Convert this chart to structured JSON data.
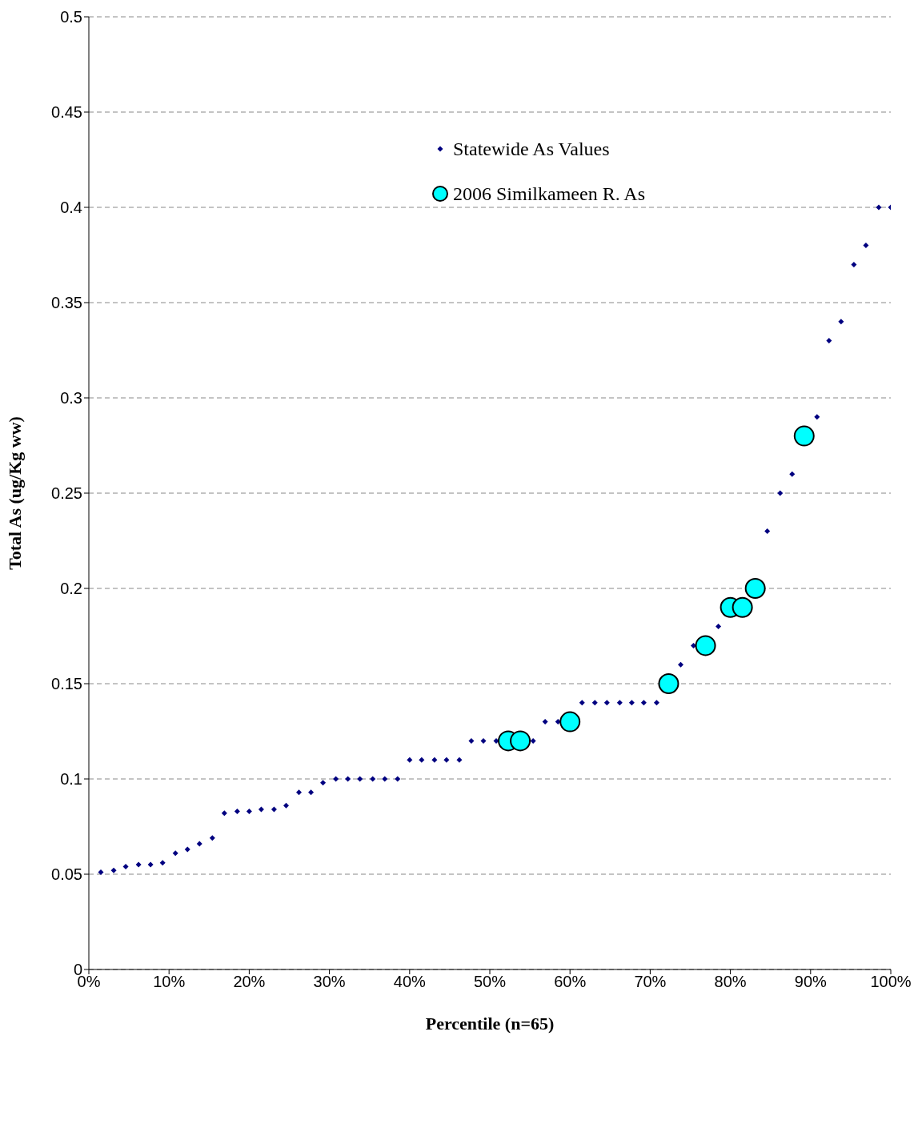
{
  "chart_data": {
    "type": "scatter",
    "xlabel": "Percentile  (n=65)",
    "ylabel": "Total As (ug/Kg ww)",
    "xlim": [
      0,
      100
    ],
    "xticks": [
      {
        "value": 0,
        "label": "0%"
      },
      {
        "value": 10,
        "label": "10%"
      },
      {
        "value": 20,
        "label": "20%"
      },
      {
        "value": 30,
        "label": "30%"
      },
      {
        "value": 40,
        "label": "40%"
      },
      {
        "value": 50,
        "label": "50%"
      },
      {
        "value": 60,
        "label": "60%"
      },
      {
        "value": 70,
        "label": "70%"
      },
      {
        "value": 80,
        "label": "80%"
      },
      {
        "value": 90,
        "label": "90%"
      },
      {
        "value": 100,
        "label": "100%"
      }
    ],
    "ylim": [
      0,
      0.5
    ],
    "yticks": [
      0,
      0.05,
      0.1,
      0.15,
      0.2,
      0.25,
      0.3,
      0.35,
      0.4,
      0.45,
      0.5
    ],
    "grid": "y",
    "legend": "top",
    "series": [
      {
        "name": "Statewide As Values",
        "color": "#000080",
        "marker": "diamond",
        "x": [
          1.5,
          3.1,
          4.6,
          6.2,
          7.7,
          9.2,
          10.8,
          12.3,
          13.8,
          15.4,
          16.9,
          18.5,
          20.0,
          21.5,
          23.1,
          24.6,
          26.2,
          27.7,
          29.2,
          30.8,
          32.3,
          33.8,
          35.4,
          36.9,
          38.5,
          40.0,
          41.5,
          43.1,
          44.6,
          46.2,
          47.7,
          49.2,
          50.8,
          52.3,
          53.8,
          55.4,
          56.9,
          58.5,
          60.0,
          61.5,
          63.1,
          64.6,
          66.2,
          67.7,
          69.2,
          70.8,
          72.3,
          73.8,
          75.4,
          76.9,
          78.5,
          80.0,
          81.5,
          83.1,
          84.6,
          86.2,
          87.7,
          89.2,
          90.8,
          92.3,
          93.8,
          95.4,
          96.9,
          98.5,
          100
        ],
        "values": [
          0.051,
          0.052,
          0.054,
          0.055,
          0.055,
          0.056,
          0.061,
          0.063,
          0.066,
          0.069,
          0.082,
          0.083,
          0.083,
          0.084,
          0.084,
          0.086,
          0.093,
          0.093,
          0.098,
          0.1,
          0.1,
          0.1,
          0.1,
          0.1,
          0.1,
          0.11,
          0.11,
          0.11,
          0.11,
          0.11,
          0.12,
          0.12,
          0.12,
          null,
          null,
          0.12,
          0.13,
          0.13,
          null,
          0.14,
          0.14,
          0.14,
          0.14,
          0.14,
          0.14,
          0.14,
          null,
          0.16,
          0.17,
          null,
          0.18,
          null,
          null,
          null,
          0.23,
          0.25,
          0.26,
          null,
          0.29,
          0.33,
          0.34,
          0.37,
          0.38,
          0.4,
          0.4
        ]
      },
      {
        "name": "2006 Similkameen R. As",
        "color": "#00ffff",
        "marker": "circle",
        "x": [
          52.3,
          53.8,
          60.0,
          72.3,
          76.9,
          80.0,
          81.5,
          83.1,
          89.2
        ],
        "values": [
          0.12,
          0.12,
          0.13,
          0.15,
          0.17,
          0.19,
          0.19,
          0.2,
          0.28
        ]
      }
    ]
  }
}
